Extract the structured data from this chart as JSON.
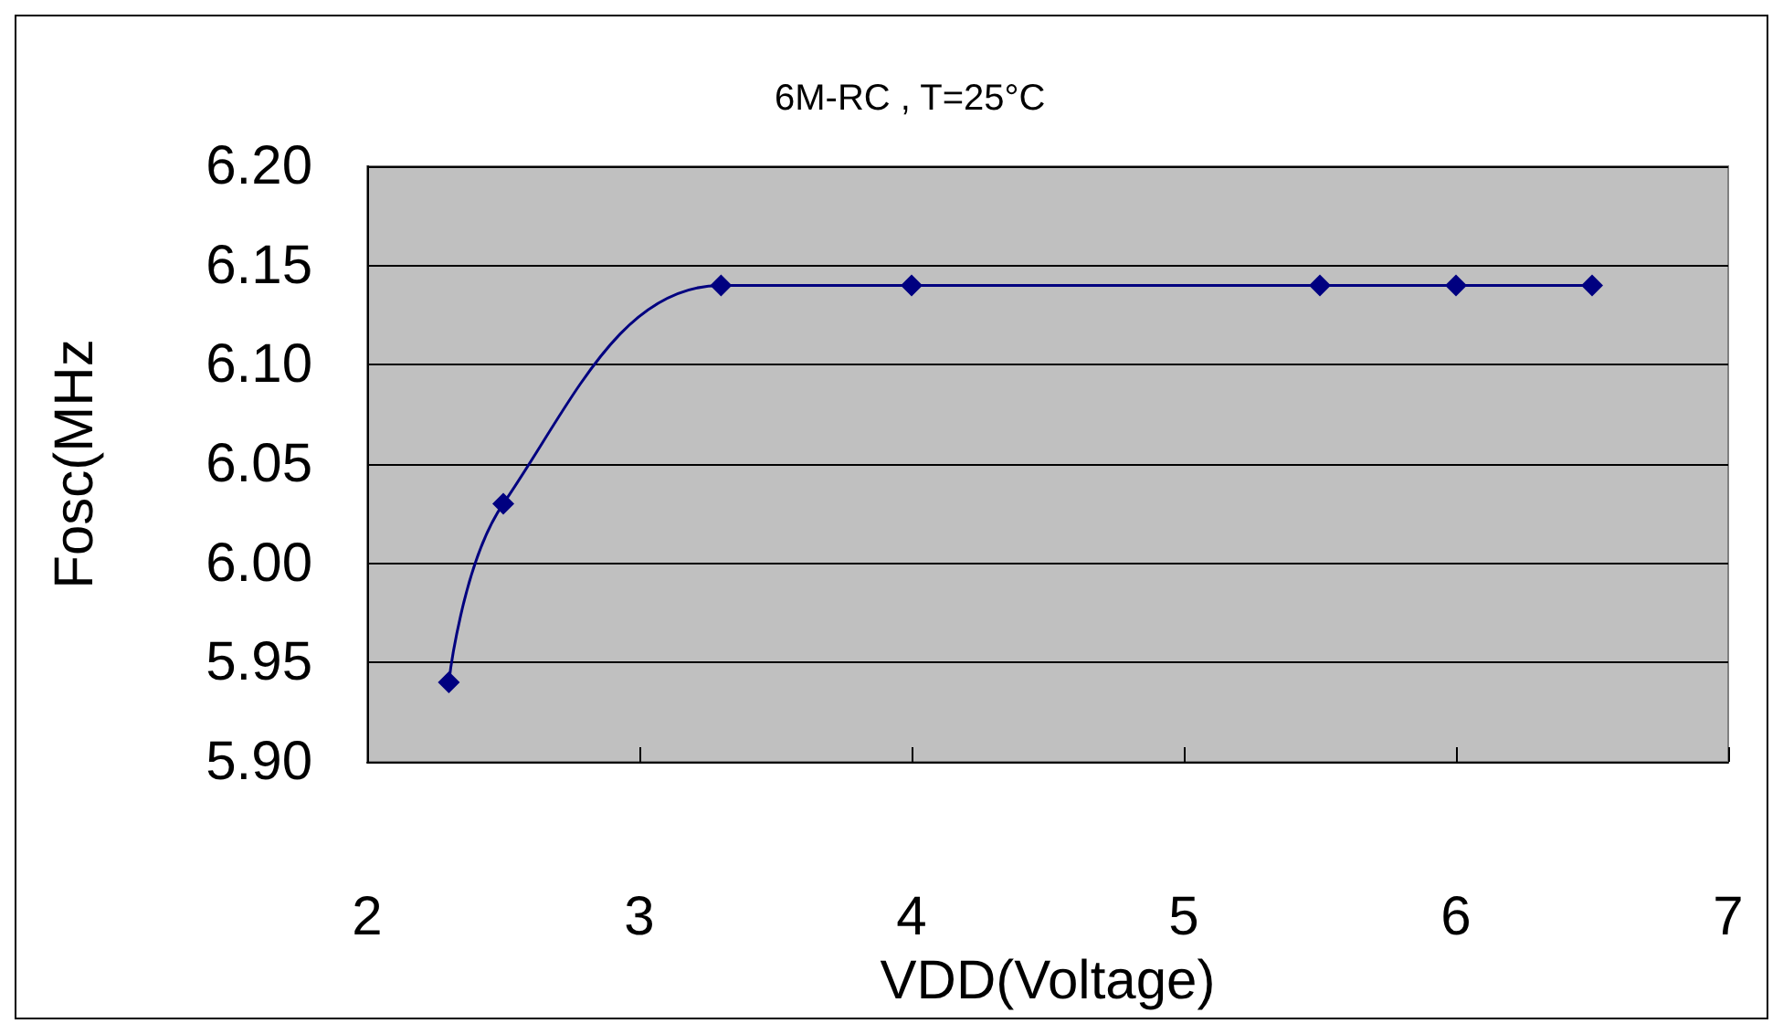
{
  "chart_data": {
    "type": "line",
    "title": "6M-RC , T=25°C",
    "xlabel": "VDD(Voltage)",
    "ylabel": "Fosc(MHz",
    "x": [
      2.3,
      2.5,
      3.3,
      4.0,
      5.5,
      6.0,
      6.5
    ],
    "series": [
      {
        "color": "#000080",
        "values": [
          5.94,
          6.03,
          6.14,
          6.14,
          6.14,
          6.14,
          6.14
        ]
      }
    ],
    "xlim": [
      2,
      7
    ],
    "xticks": [
      2,
      3,
      4,
      5,
      6,
      7
    ],
    "ylim": [
      5.9,
      6.2
    ],
    "yticks": [
      {
        "value": 5.9,
        "label": "5.90"
      },
      {
        "value": 5.95,
        "label": "5.95"
      },
      {
        "value": 6.0,
        "label": "6.00"
      },
      {
        "value": 6.05,
        "label": "6.05"
      },
      {
        "value": 6.1,
        "label": "6.10"
      },
      {
        "value": 6.15,
        "label": "6.15"
      },
      {
        "value": 6.2,
        "label": "6.20"
      }
    ],
    "grid": "y",
    "marker": "diamond",
    "line_style": "solid"
  }
}
